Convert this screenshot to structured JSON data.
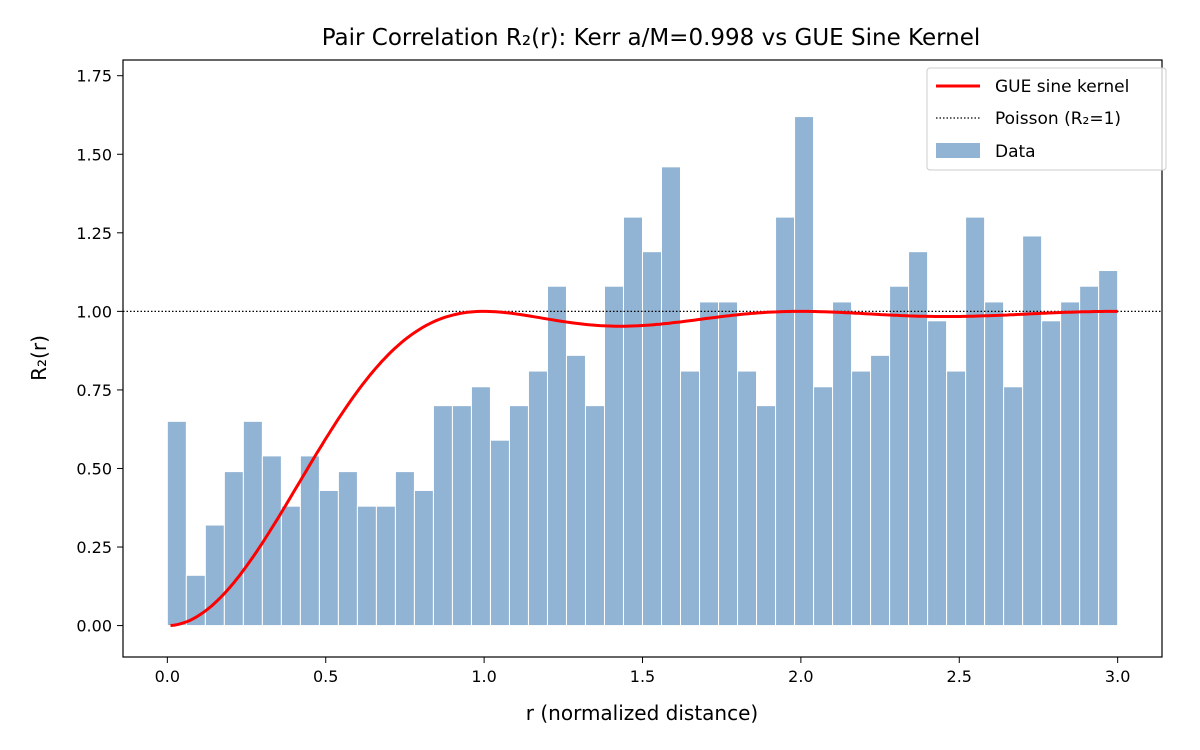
{
  "chart_data": {
    "type": "bar",
    "title": "Pair Correlation R₂(r): Kerr a/M=0.998 vs GUE Sine Kernel",
    "xlabel": "r (normalized distance)",
    "ylabel": "R₂(r)",
    "xlim": [
      -0.14,
      3.14
    ],
    "ylim": [
      -0.1,
      1.8
    ],
    "xticks": [
      "0.0",
      "0.5",
      "1.0",
      "1.5",
      "2.0",
      "2.5",
      "3.0"
    ],
    "yticks": [
      "0.00",
      "0.25",
      "0.50",
      "0.75",
      "1.00",
      "1.25",
      "1.50",
      "1.75"
    ],
    "grid": false,
    "legend_position": "top-right",
    "bins": {
      "start": 0,
      "end": 3,
      "count": 50
    },
    "histogram": {
      "name": "Data",
      "color": "#92b4d4",
      "values": [
        0.65,
        0.16,
        0.32,
        0.49,
        0.65,
        0.54,
        0.38,
        0.54,
        0.43,
        0.49,
        0.38,
        0.38,
        0.49,
        0.43,
        0.7,
        0.7,
        0.76,
        0.59,
        0.7,
        0.81,
        1.08,
        0.86,
        0.7,
        1.08,
        1.3,
        1.19,
        1.46,
        0.81,
        1.03,
        1.03,
        0.81,
        0.7,
        1.3,
        1.62,
        0.76,
        1.03,
        0.81,
        0.86,
        1.08,
        1.19,
        0.97,
        0.81,
        1.3,
        1.03,
        0.76,
        1.24,
        0.97,
        1.03,
        1.08,
        1.13
      ]
    },
    "curve": {
      "name": "GUE sine kernel",
      "formula": "1 - (sin(pi r)/(pi r))^2",
      "color": "#ff0000"
    },
    "reference_line": {
      "name": "Poisson (R₂=1)",
      "y": 1.0,
      "color": "#000000",
      "style": "dotted"
    },
    "legend": [
      "GUE sine kernel",
      "Poisson (R₂=1)",
      "Data"
    ]
  }
}
